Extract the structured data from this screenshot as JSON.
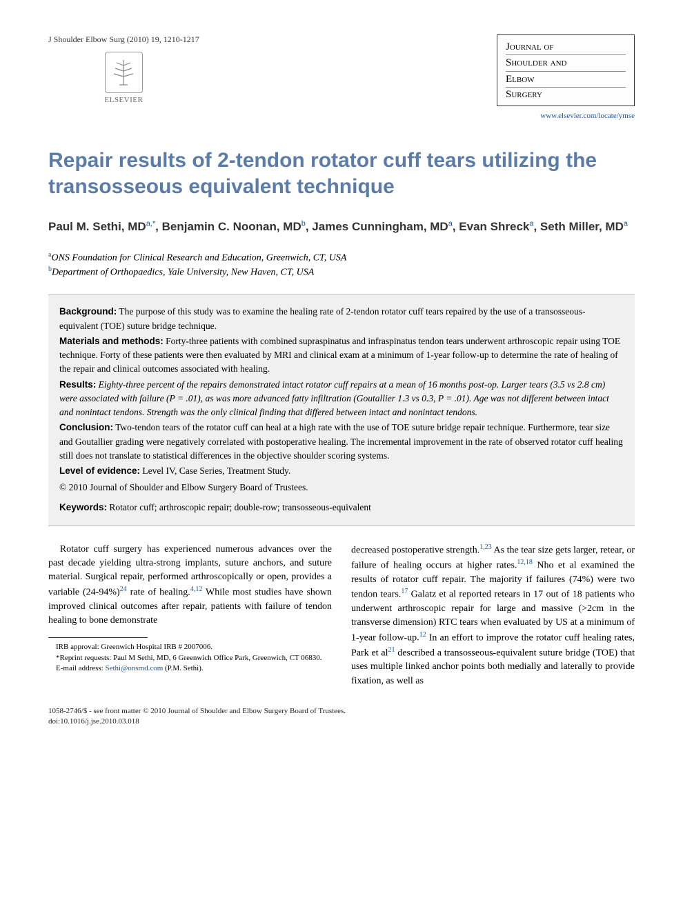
{
  "header": {
    "citation": "J Shoulder Elbow Surg (2010) 19, 1210-1217",
    "publisher_name": "ELSEVIER",
    "journal_title_lines": [
      "Journal of",
      "Shoulder and",
      "Elbow",
      "Surgery"
    ],
    "journal_link": "www.elsevier.com/locate/ymse"
  },
  "article": {
    "title": "Repair results of 2-tendon rotator cuff tears utilizing the transosseous equivalent technique",
    "authors_html": "Paul M. Sethi, MD|a,*|, Benjamin C. Noonan, MD|b|, James Cunningham, MD|a|, Evan Shreck|a|, Seth Miller, MD|a|",
    "affiliations": [
      {
        "sup": "a",
        "text": "ONS Foundation for Clinical Research and Education, Greenwich, CT, USA"
      },
      {
        "sup": "b",
        "text": "Department of Orthopaedics, Yale University, New Haven, CT, USA"
      }
    ]
  },
  "abstract": {
    "background_label": "Background:",
    "background_text": " The purpose of this study was to examine the healing rate of 2-tendon rotator cuff tears repaired by the use of a transosseous-equivalent (TOE) suture bridge technique.",
    "methods_label": "Materials and methods:",
    "methods_text": " Forty-three patients with combined supraspinatus and infraspinatus tendon tears underwent arthroscopic repair using TOE technique. Forty of these patients were then evaluated by MRI and clinical exam at a minimum of 1-year follow-up to determine the rate of healing of the repair and clinical outcomes associated with healing.",
    "results_label": "Results:",
    "results_text": " Eighty-three percent of the repairs demonstrated intact rotator cuff repairs at a mean of 16 months post-op. Larger tears (3.5 vs 2.8 cm) were associated with failure (P = .01), as was more advanced fatty infiltration (Goutallier 1.3 vs 0.3, P = .01). Age was not different between intact and nonintact tendons. Strength was the only clinical finding that differed between intact and nonintact tendons.",
    "conclusion_label": "Conclusion:",
    "conclusion_text": " Two-tendon tears of the rotator cuff can heal at a high rate with the use of TOE suture bridge repair technique. Furthermore, tear size and Goutallier grading were negatively correlated with postoperative healing. The incremental improvement in the rate of observed rotator cuff healing still does not translate to statistical differences in the objective shoulder scoring systems.",
    "evidence_label": "Level of evidence:",
    "evidence_text": " Level IV, Case Series, Treatment Study.",
    "copyright": "© 2010 Journal of Shoulder and Elbow Surgery Board of Trustees.",
    "keywords_label": "Keywords:",
    "keywords_text": " Rotator cuff; arthroscopic repair; double-row; transosseous-equivalent"
  },
  "body": {
    "col1_p1_a": "Rotator cuff surgery has experienced numerous advances over the past decade yielding ultra-strong implants, suture anchors, and suture material. Surgical repair, performed arthroscopically or open, provides a variable (24-94%)",
    "col1_sup1": "24",
    "col1_p1_b": " rate of healing.",
    "col1_sup2": "4,12",
    "col1_p1_c": " While most studies have shown improved clinical outcomes after repair, patients with failure of tendon healing to bone demonstrate",
    "col2_p1_a": "decreased postoperative strength.",
    "col2_sup1": "1,23",
    "col2_p1_b": " As the tear size gets larger, retear, or failure of healing occurs at higher rates.",
    "col2_sup2": "12,18",
    "col2_p1_c": " Nho et al examined the results of rotator cuff repair. The majority if failures (74%) were two tendon tears.",
    "col2_sup3": "17",
    "col2_p1_d": " Galatz et al reported retears in 17 out of 18 patients who underwent arthroscopic repair for large and massive (>2cm in the transverse dimension) RTC tears when evaluated by US at a minimum of 1-year follow-up.",
    "col2_sup4": "12",
    "col2_p1_e": " In an effort to improve the rotator cuff healing rates, Park et al",
    "col2_sup5": "21",
    "col2_p1_f": " described a transosseous-equivalent suture bridge (TOE) that uses multiple linked anchor points both medially and laterally to provide fixation, as well as"
  },
  "footnotes": {
    "irb": "IRB approval: Greenwich Hospital IRB # 2007006.",
    "reprint": "*Reprint requests: Paul M Sethi, MD, 6 Greenwich Office Park, Greenwich, CT 06830.",
    "email_label": "E-mail address: ",
    "email": "Sethi@onsmd.com",
    "email_suffix": " (P.M. Sethi)."
  },
  "footer": {
    "line1": "1058-2746/$ - see front matter © 2010 Journal of Shoulder and Elbow Surgery Board of Trustees.",
    "line2": "doi:10.1016/j.jse.2010.03.018"
  },
  "colors": {
    "title_color": "#5b7ca8",
    "link_color": "#1a5490",
    "abstract_bg": "#f0f0f0"
  }
}
